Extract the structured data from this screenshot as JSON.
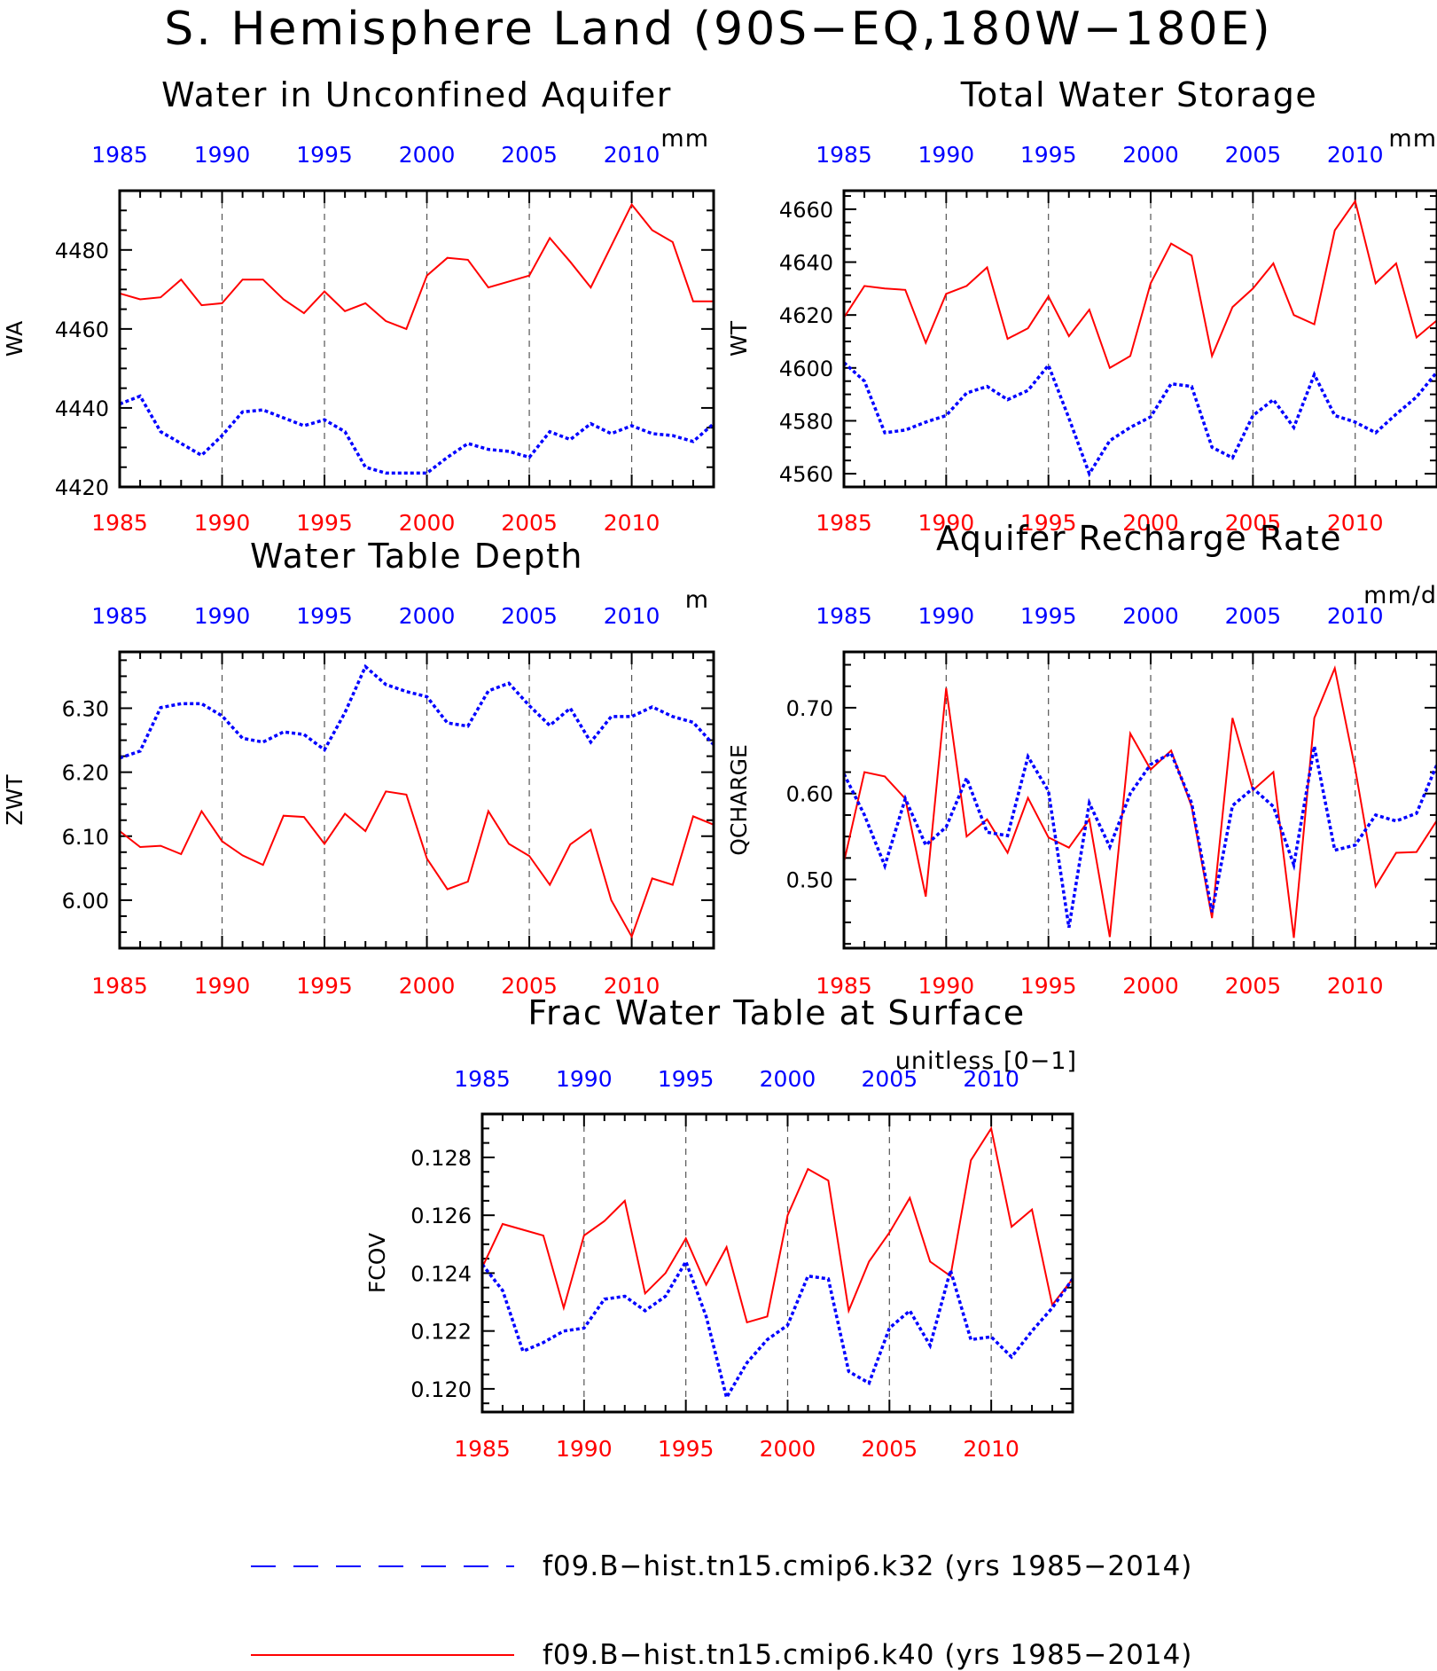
{
  "title": "S. Hemisphere Land (90S−EQ,180W−180E)",
  "colors": {
    "k32": "#0000ff",
    "k40": "#ff0000",
    "top_ticks": "#0000ff",
    "bottom_ticks": "#ff0000"
  },
  "legend": {
    "items": [
      {
        "label": "f09.B−hist.tn15.cmip6.k32 (yrs 1985−2014)",
        "color": "#0000ff",
        "style": "dashed"
      },
      {
        "label": "f09.B−hist.tn15.cmip6.k40 (yrs 1985−2014)",
        "color": "#ff0000",
        "style": "solid"
      }
    ]
  },
  "chart_data": [
    {
      "type": "line",
      "title": "Water in Unconfined Aquifer",
      "units": "mm",
      "ylabel": "WA",
      "x": [
        1985,
        1986,
        1987,
        1988,
        1989,
        1990,
        1991,
        1992,
        1993,
        1994,
        1995,
        1996,
        1997,
        1998,
        1999,
        2000,
        2001,
        2002,
        2003,
        2004,
        2005,
        2006,
        2007,
        2008,
        2009,
        2010,
        2011,
        2012,
        2013,
        2014
      ],
      "xlim": [
        1985,
        2014
      ],
      "xticks": [
        "1985",
        "1990",
        "1995",
        "2000",
        "2005",
        "2010"
      ],
      "ylim": [
        4420,
        4495
      ],
      "yticks": [
        "4420",
        "4440",
        "4460",
        "4480"
      ],
      "series": [
        {
          "name": "k40",
          "values": [
            4469,
            4467.5,
            4468,
            4472.5,
            4466,
            4466.5,
            4472.5,
            4472.5,
            4467.5,
            4464,
            4469.5,
            4464.5,
            4466.5,
            4462,
            4460,
            4473.5,
            4478,
            4477.5,
            4470.5,
            4472,
            4473.5,
            4483,
            4477,
            4470.5,
            4481,
            4491.5,
            4485,
            4482,
            4467,
            4467
          ]
        },
        {
          "name": "k32",
          "values": [
            4441,
            4443,
            4434,
            4431,
            4428,
            4433,
            4439,
            4439.5,
            4437.5,
            4435.5,
            4437,
            4434,
            4425,
            4423.5,
            4423.5,
            4423.5,
            4427.5,
            4431,
            4429.5,
            4429,
            4427.5,
            4434,
            4432,
            4436,
            4433.5,
            4435.5,
            4433.5,
            4433,
            4431.5,
            4436
          ]
        }
      ]
    },
    {
      "type": "line",
      "title": "Total Water Storage",
      "units": "mm",
      "ylabel": "WT",
      "x": [
        1985,
        1986,
        1987,
        1988,
        1989,
        1990,
        1991,
        1992,
        1993,
        1994,
        1995,
        1996,
        1997,
        1998,
        1999,
        2000,
        2001,
        2002,
        2003,
        2004,
        2005,
        2006,
        2007,
        2008,
        2009,
        2010,
        2011,
        2012,
        2013,
        2014
      ],
      "xlim": [
        1985,
        2014
      ],
      "xticks": [
        "1985",
        "1990",
        "1995",
        "2000",
        "2005",
        "2010"
      ],
      "ylim": [
        4555,
        4667
      ],
      "yticks": [
        "4560",
        "4580",
        "4600",
        "4620",
        "4640",
        "4660"
      ],
      "series": [
        {
          "name": "k40",
          "values": [
            4619,
            4631,
            4630,
            4629.5,
            4609.5,
            4628,
            4631,
            4638,
            4611,
            4615,
            4627,
            4612,
            4622,
            4600,
            4604.5,
            4632,
            4647,
            4642.5,
            4604.5,
            4623,
            4630,
            4639.5,
            4620,
            4616.5,
            4652,
            4663,
            4632,
            4639.5,
            4611.5,
            4618
          ]
        },
        {
          "name": "k32",
          "values": [
            4602,
            4595,
            4575.5,
            4576.5,
            4579.5,
            4582,
            4590.5,
            4593,
            4588,
            4591.5,
            4601,
            4581,
            4560,
            4572.5,
            4577.5,
            4581.5,
            4594,
            4593,
            4570,
            4566,
            4582,
            4588,
            4577.5,
            4597.5,
            4582,
            4579.5,
            4575.5,
            4582.5,
            4589,
            4598.5
          ]
        }
      ]
    },
    {
      "type": "line",
      "title": "Water Table Depth",
      "units": "m",
      "ylabel": "ZWT",
      "x": [
        1985,
        1986,
        1987,
        1988,
        1989,
        1990,
        1991,
        1992,
        1993,
        1994,
        1995,
        1996,
        1997,
        1998,
        1999,
        2000,
        2001,
        2002,
        2003,
        2004,
        2005,
        2006,
        2007,
        2008,
        2009,
        2010,
        2011,
        2012,
        2013,
        2014
      ],
      "xlim": [
        1985,
        2014
      ],
      "xticks": [
        "1985",
        "1990",
        "1995",
        "2000",
        "2005",
        "2010"
      ],
      "ylim": [
        5.925,
        6.388
      ],
      "yticks": [
        "6.00",
        "6.10",
        "6.20",
        "6.30"
      ],
      "series": [
        {
          "name": "k40",
          "values": [
            6.108,
            6.083,
            6.085,
            6.072,
            6.139,
            6.092,
            6.07,
            6.055,
            6.132,
            6.13,
            6.088,
            6.135,
            6.108,
            6.17,
            6.165,
            6.065,
            6.017,
            6.029,
            6.139,
            6.088,
            6.069,
            6.024,
            6.087,
            6.11,
            6.0,
            5.943,
            6.034,
            6.024,
            6.131,
            6.118
          ]
        },
        {
          "name": "k32",
          "values": [
            6.222,
            6.233,
            6.301,
            6.307,
            6.307,
            6.288,
            6.253,
            6.247,
            6.263,
            6.259,
            6.235,
            6.293,
            6.365,
            6.337,
            6.326,
            6.318,
            6.277,
            6.272,
            6.327,
            6.339,
            6.304,
            6.273,
            6.3,
            6.247,
            6.287,
            6.287,
            6.302,
            6.287,
            6.278,
            6.243
          ]
        }
      ]
    },
    {
      "type": "line",
      "title": "Aquifer Recharge Rate",
      "units": "mm/d",
      "ylabel": "QCHARGE",
      "x": [
        1985,
        1986,
        1987,
        1988,
        1989,
        1990,
        1991,
        1992,
        1993,
        1994,
        1995,
        1996,
        1997,
        1998,
        1999,
        2000,
        2001,
        2002,
        2003,
        2004,
        2005,
        2006,
        2007,
        2008,
        2009,
        2010,
        2011,
        2012,
        2013,
        2014
      ],
      "xlim": [
        1985,
        2014
      ],
      "xticks": [
        "1985",
        "1990",
        "1995",
        "2000",
        "2005",
        "2010"
      ],
      "ylim": [
        0.42,
        0.765
      ],
      "yticks": [
        "0.50",
        "0.60",
        "0.70"
      ],
      "series": [
        {
          "name": "k40",
          "values": [
            0.52,
            0.625,
            0.62,
            0.594,
            0.48,
            0.723,
            0.55,
            0.57,
            0.531,
            0.595,
            0.549,
            0.537,
            0.57,
            0.433,
            0.67,
            0.628,
            0.65,
            0.585,
            0.455,
            0.688,
            0.604,
            0.625,
            0.432,
            0.688,
            0.746,
            0.629,
            0.492,
            0.531,
            0.532,
            0.569
          ]
        },
        {
          "name": "k32",
          "values": [
            0.623,
            0.575,
            0.516,
            0.594,
            0.54,
            0.561,
            0.618,
            0.555,
            0.551,
            0.643,
            0.603,
            0.444,
            0.589,
            0.538,
            0.6,
            0.634,
            0.647,
            0.589,
            0.462,
            0.586,
            0.606,
            0.585,
            0.517,
            0.655,
            0.534,
            0.54,
            0.575,
            0.568,
            0.577,
            0.634
          ]
        }
      ]
    },
    {
      "type": "line",
      "title": "Frac Water Table at Surface",
      "units": "unitless [0−1]",
      "ylabel": "FCOV",
      "x": [
        1985,
        1986,
        1987,
        1988,
        1989,
        1990,
        1991,
        1992,
        1993,
        1994,
        1995,
        1996,
        1997,
        1998,
        1999,
        2000,
        2001,
        2002,
        2003,
        2004,
        2005,
        2006,
        2007,
        2008,
        2009,
        2010,
        2011,
        2012,
        2013,
        2014
      ],
      "xlim": [
        1985,
        2014
      ],
      "xticks": [
        "1985",
        "1990",
        "1995",
        "2000",
        "2005",
        "2010"
      ],
      "ylim": [
        0.1192,
        0.1295
      ],
      "yticks": [
        "0.120",
        "0.122",
        "0.124",
        "0.126",
        "0.128"
      ],
      "series": [
        {
          "name": "k40",
          "values": [
            0.1242,
            0.1257,
            0.1255,
            0.1253,
            0.1228,
            0.1253,
            0.1258,
            0.1265,
            0.1233,
            0.124,
            0.1252,
            0.1236,
            0.1249,
            0.1223,
            0.1225,
            0.126,
            0.1276,
            0.1272,
            0.1227,
            0.1244,
            0.1254,
            0.1266,
            0.1244,
            0.1239,
            0.1279,
            0.129,
            0.1256,
            0.1262,
            0.1229,
            0.1238
          ]
        },
        {
          "name": "k32",
          "values": [
            0.1243,
            0.1234,
            0.1213,
            0.1216,
            0.122,
            0.1221,
            0.1231,
            0.1232,
            0.1227,
            0.1232,
            0.1244,
            0.1225,
            0.1197,
            0.1209,
            0.1217,
            0.1222,
            0.1239,
            0.1238,
            0.1206,
            0.1202,
            0.1221,
            0.1227,
            0.1215,
            0.1241,
            0.1217,
            0.1218,
            0.1211,
            0.122,
            0.1228,
            0.1238
          ]
        }
      ]
    }
  ]
}
